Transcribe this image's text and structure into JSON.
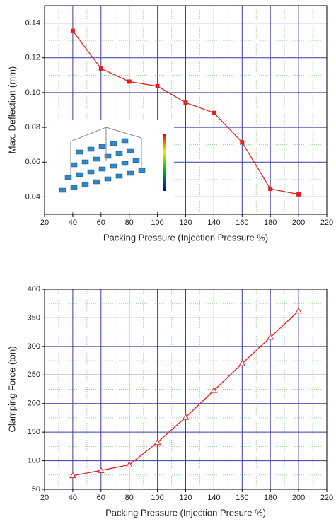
{
  "chart_data": [
    {
      "type": "line",
      "marker": "square",
      "grid": true,
      "grid_color": "#3a3aa8",
      "minor_grid_color": "#9ccf9c",
      "x_label": "Packing Pressure (Injection Pressure %)",
      "y_label": "Max. Deflection (mm)",
      "x": [
        40,
        60,
        80,
        100,
        120,
        140,
        160,
        180,
        200
      ],
      "series": [
        {
          "color": "#e02020",
          "values": [
            0.1355,
            0.1138,
            0.1063,
            0.1037,
            0.0942,
            0.0883,
            0.0714,
            0.0446,
            0.0415
          ]
        }
      ],
      "xlim": [
        20,
        220
      ],
      "xticks": [
        20,
        40,
        60,
        80,
        100,
        120,
        140,
        160,
        180,
        200,
        220
      ],
      "ylim": [
        0.03,
        0.15
      ],
      "yticks": [
        0.04,
        0.06,
        0.08,
        {
          "value": 0.1,
          "label": "0.10"
        },
        0.12,
        0.14
      ]
    },
    {
      "type": "line",
      "marker": "triangle",
      "grid": true,
      "grid_color": "#3a3aa8",
      "minor_grid_color": "#9ccf9c",
      "x_label": "Packing Pressure (Injection Presure %)",
      "y_label": "Clamping Force (ton)",
      "x": [
        40,
        60,
        80,
        100,
        120,
        140,
        160,
        180,
        200
      ],
      "series": [
        {
          "color": "#e02020",
          "values": [
            74,
            83,
            93,
            132,
            176,
            223,
            270,
            316,
            362
          ]
        }
      ],
      "xlim": [
        20,
        220
      ],
      "xticks": [
        20,
        40,
        60,
        80,
        100,
        120,
        140,
        160,
        180,
        200,
        220
      ],
      "ylim": [
        50,
        400
      ],
      "yticks": [
        50,
        100,
        150,
        200,
        250,
        300,
        350,
        400
      ]
    }
  ]
}
